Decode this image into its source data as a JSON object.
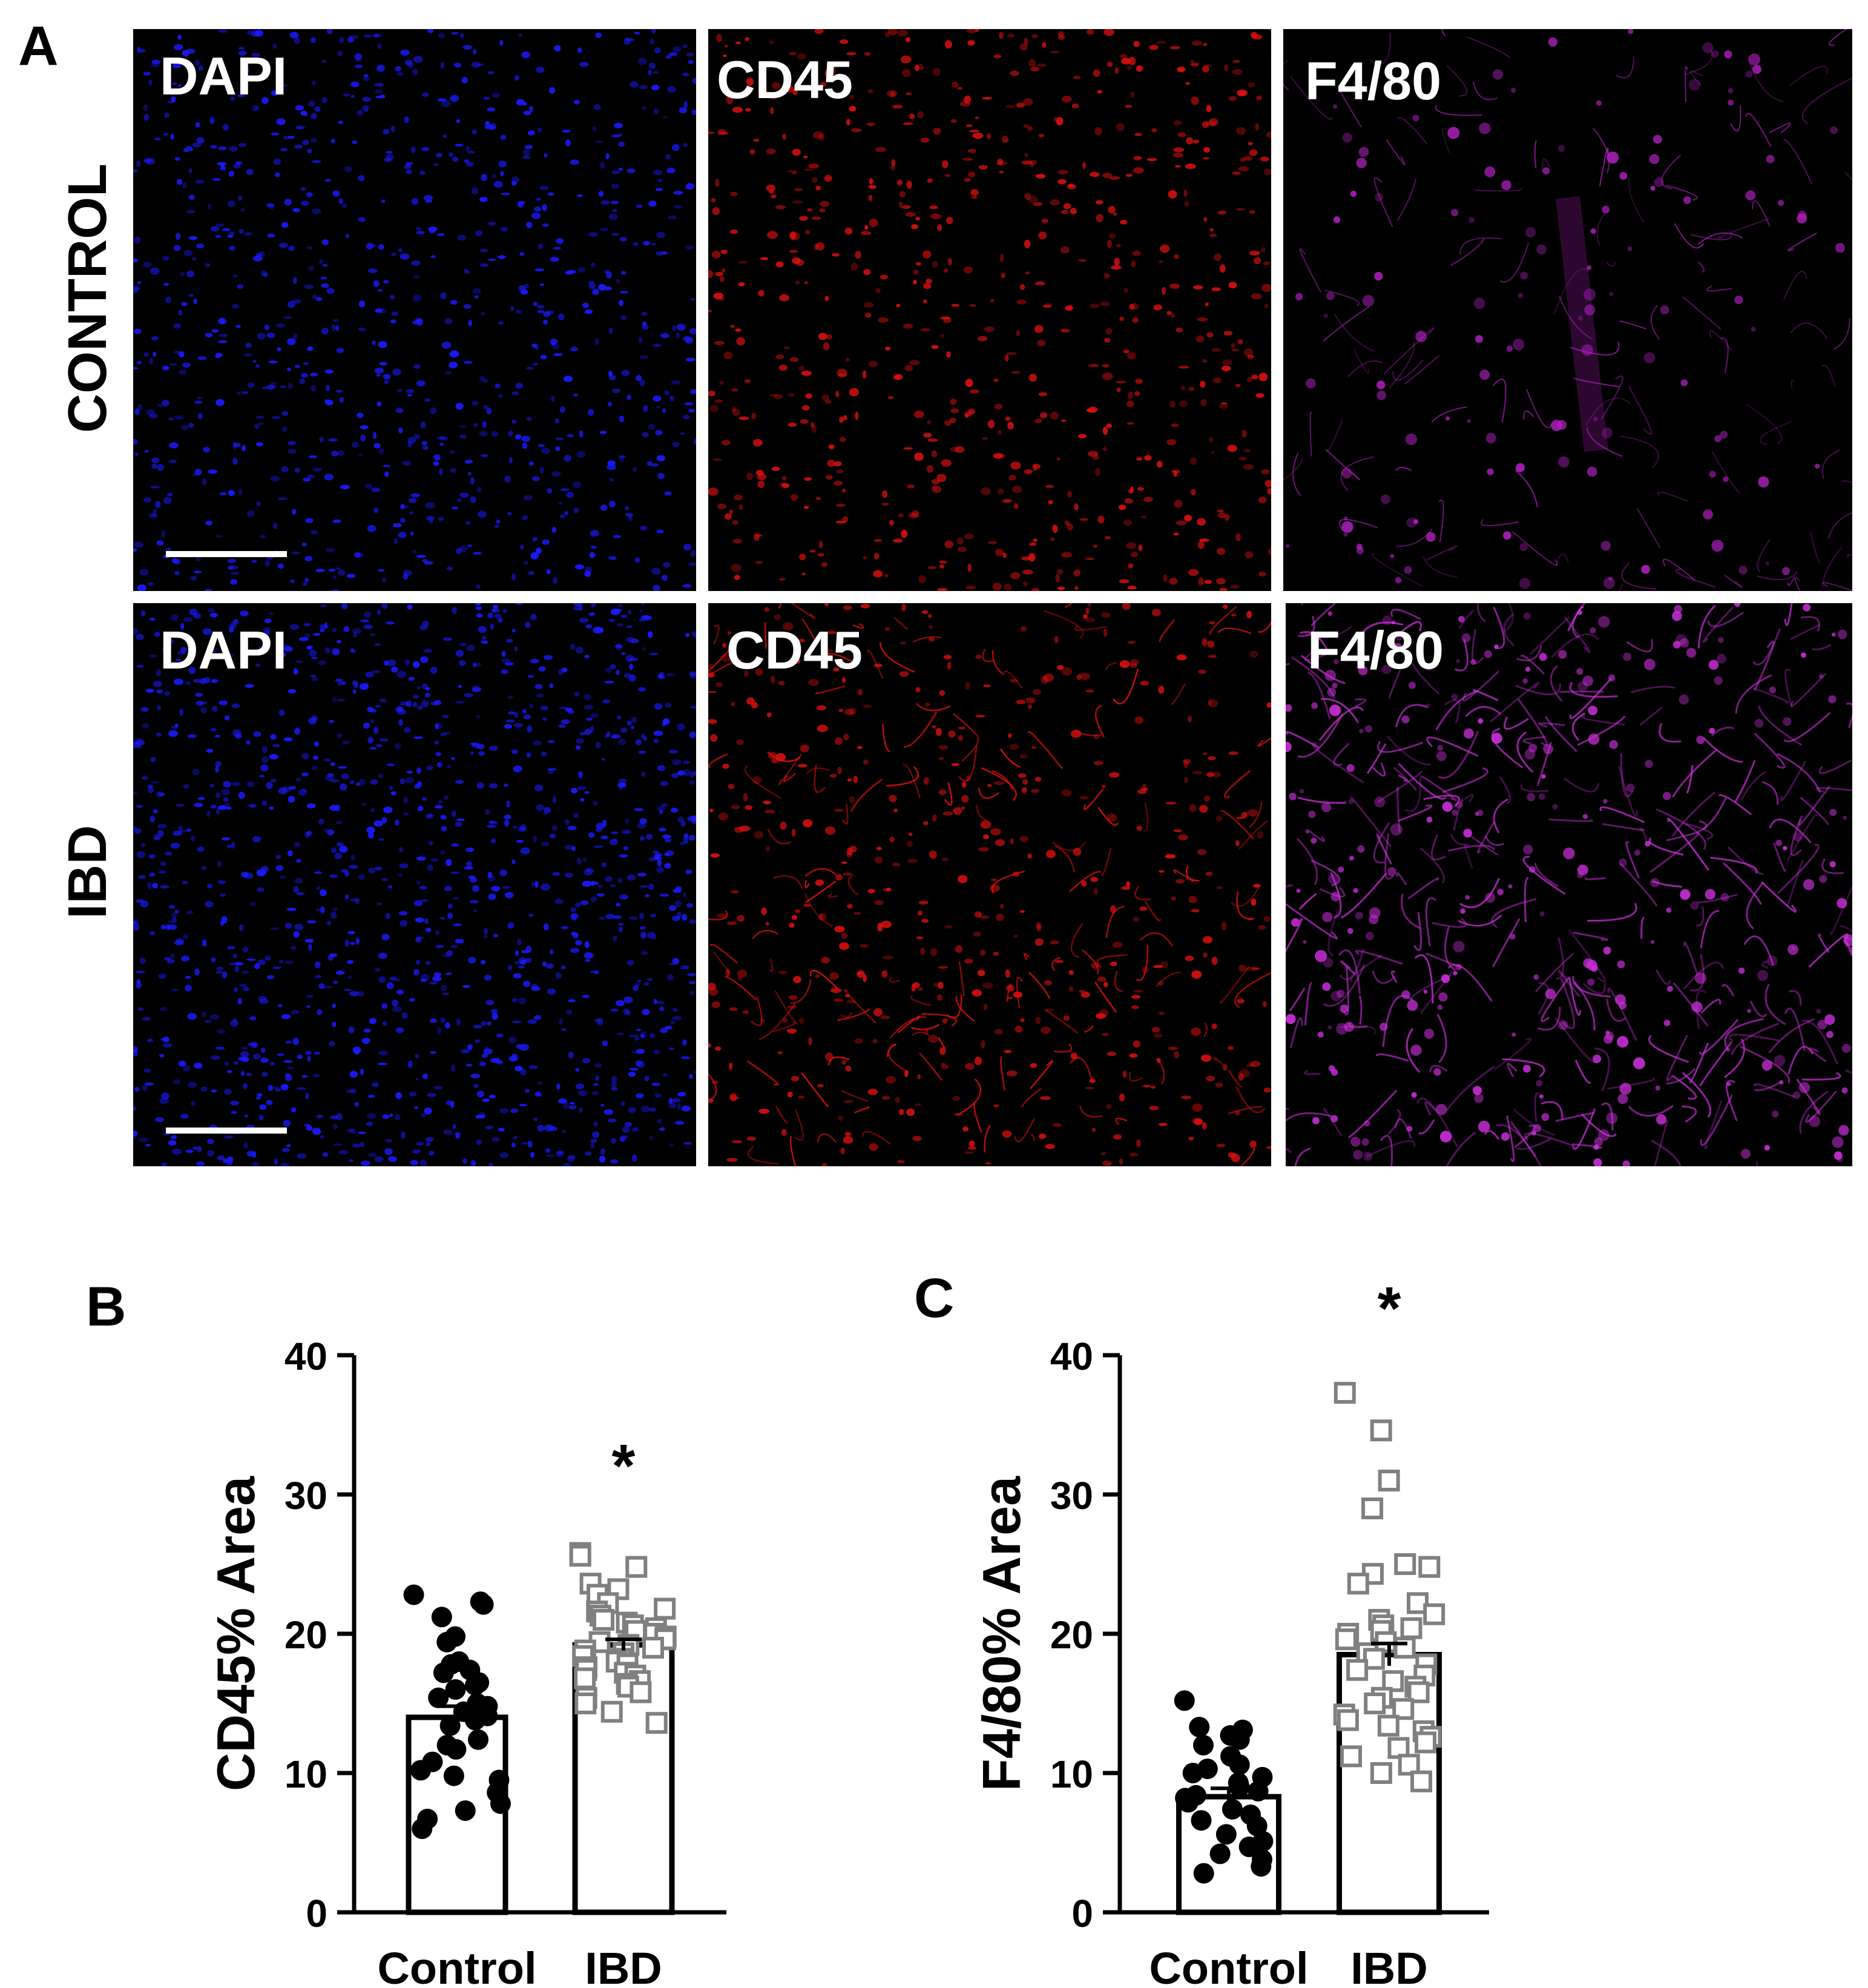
{
  "panel_a": {
    "letter": "A",
    "rows": [
      {
        "label": "CONTROL",
        "images": [
          {
            "label": "DAPI",
            "color": "#1a1aff",
            "stain": "dapi"
          },
          {
            "label": "CD45",
            "color": "#e01010",
            "stain": "cd45"
          },
          {
            "label": "F4/80",
            "color": "#b020c0",
            "stain": "f480"
          }
        ]
      },
      {
        "label": "IBD",
        "images": [
          {
            "label": "DAPI",
            "color": "#1a1aff",
            "stain": "dapi"
          },
          {
            "label": "CD45",
            "color": "#e01010",
            "stain": "cd45"
          },
          {
            "label": "F4/80",
            "color": "#d030e0",
            "stain": "f480"
          }
        ]
      }
    ]
  },
  "chart_data": [
    {
      "panel": "B",
      "type": "bar",
      "title": "",
      "ylabel": "CD45% Area",
      "xlabel": "",
      "categories": [
        "Control",
        "IBD"
      ],
      "values": [
        14,
        19.2
      ],
      "sem": [
        0.8,
        0.4
      ],
      "ylim": [
        0,
        40
      ],
      "yticks": [
        0,
        10,
        20,
        30,
        40
      ],
      "significance": [
        "",
        "*"
      ],
      "points": [
        [
          22.8,
          22.3,
          22.1,
          21.2,
          19.4,
          19.8,
          18.0,
          17.8,
          17.4,
          17.2,
          16.5,
          16.3,
          16.0,
          15.4,
          15.0,
          14.8,
          14.4,
          14.1,
          13.8,
          13.4,
          12.4,
          12.0,
          11.7,
          10.8,
          10.2,
          9.8,
          9.5,
          8.6,
          7.8,
          7.3,
          6.7,
          6.0
        ],
        [
          25.8,
          25.6,
          24.8,
          23.6,
          23.2,
          22.8,
          22.2,
          21.8,
          21.6,
          21.3,
          21.0,
          20.8,
          20.6,
          20.4,
          20.2,
          20.0,
          19.8,
          19.6,
          19.4,
          19.2,
          19.0,
          18.8,
          18.6,
          18.4,
          18.2,
          18.0,
          17.8,
          17.6,
          17.4,
          17.2,
          17.0,
          16.8,
          16.6,
          16.4,
          16.2,
          15.8,
          15.4,
          15.0,
          14.4,
          13.6
        ]
      ]
    },
    {
      "panel": "C",
      "type": "bar",
      "title": "",
      "ylabel": "F4/80% Area",
      "xlabel": "",
      "categories": [
        "Control",
        "IBD"
      ],
      "values": [
        8.3,
        18.5
      ],
      "sem": [
        0.6,
        0.8
      ],
      "ylim": [
        0,
        40
      ],
      "yticks": [
        0,
        10,
        20,
        30,
        40
      ],
      "significance": [
        "",
        "*"
      ],
      "points": [
        [
          15.2,
          13.3,
          13.1,
          12.7,
          12.4,
          12.0,
          11.2,
          10.6,
          10.3,
          10.0,
          9.7,
          9.3,
          9.0,
          8.7,
          8.4,
          8.2,
          7.9,
          7.4,
          7.0,
          6.6,
          6.2,
          5.6,
          5.1,
          4.7,
          4.2,
          3.8,
          3.3,
          2.8
        ],
        [
          37.3,
          34.6,
          31.0,
          29.0,
          25.0,
          24.8,
          24.3,
          23.6,
          22.2,
          21.4,
          21.0,
          20.6,
          20.4,
          20.2,
          20.0,
          19.6,
          19.4,
          19.0,
          18.6,
          18.2,
          17.8,
          17.4,
          17.0,
          16.6,
          16.2,
          15.8,
          15.4,
          15.0,
          14.6,
          14.2,
          13.8,
          13.4,
          13.0,
          12.6,
          12.2,
          11.8,
          11.2,
          10.6,
          10.0,
          9.4
        ]
      ]
    }
  ]
}
